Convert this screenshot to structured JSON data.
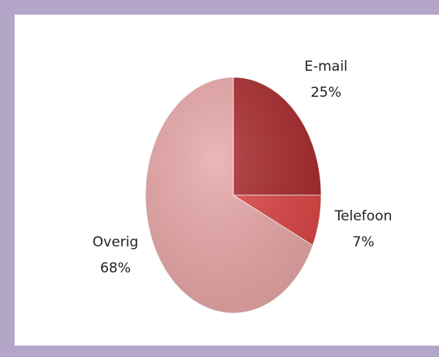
{
  "chart_data": {
    "type": "pie",
    "categories": [
      "E-mail",
      "Telefoon",
      "Overig"
    ],
    "values": [
      25,
      7,
      68
    ],
    "value_labels": [
      "25%",
      "7%",
      "68%"
    ],
    "colors": [
      "#a8282a",
      "#de4444",
      "#e9a7a7"
    ]
  }
}
